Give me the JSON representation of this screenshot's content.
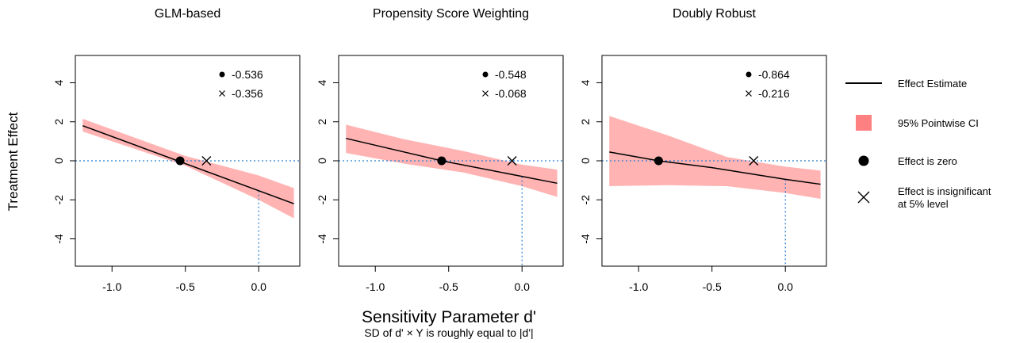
{
  "figure": {
    "ylabel": "Treatment Effect",
    "xlabel": "Sensitivity Parameter d'",
    "xsublabel": "SD of d' × Y is roughly equal to |d'|"
  },
  "legend": {
    "placement": "right",
    "items": [
      {
        "label": "Effect Estimate",
        "symbol": "line"
      },
      {
        "label": "95% Pointwise CI",
        "symbol": "band"
      },
      {
        "label": "Effect is zero",
        "symbol": "dot"
      },
      {
        "label_line1": "Effect is insignificant",
        "label_line2": "at 5% level",
        "symbol": "cross"
      }
    ]
  },
  "colors": {
    "estimate_line": "#000000",
    "ci_band": "#ffb3b3",
    "ci_legend": "#ff8080",
    "reference_lines": "#2a7fcf"
  },
  "chart_data": [
    {
      "type": "line",
      "title": "GLM-based",
      "xlim": [
        -1.25,
        0.28
      ],
      "ylim": [
        -5.4,
        5.4
      ],
      "xticks": [
        -1.0,
        -0.5,
        0.0
      ],
      "xtick_labels": [
        "-1.0",
        "-0.5",
        "0.0"
      ],
      "yticks": [
        -4,
        -2,
        0,
        2,
        4
      ],
      "ytick_labels": [
        "-4",
        "-2",
        "0",
        "2",
        "4"
      ],
      "reference": {
        "y": 0,
        "x": 0
      },
      "estimate": {
        "x": [
          -1.2,
          0.24
        ],
        "y": [
          1.8,
          -2.2
        ]
      },
      "ci_band": {
        "x": [
          -1.2,
          -0.5,
          0.0,
          0.24
        ],
        "lower": [
          1.5,
          -0.25,
          -2.0,
          -2.95
        ],
        "upper": [
          2.15,
          0.25,
          -0.75,
          -1.4
        ]
      },
      "zero_point": {
        "x": -0.536,
        "y": 0,
        "label": "-0.536"
      },
      "insignificant_point": {
        "x": -0.356,
        "y": 0,
        "label": "-0.356"
      }
    },
    {
      "type": "line",
      "title": "Propensity Score Weighting",
      "xlim": [
        -1.25,
        0.28
      ],
      "ylim": [
        -5.4,
        5.4
      ],
      "xticks": [
        -1.0,
        -0.5,
        0.0
      ],
      "xtick_labels": [
        "-1.0",
        "-0.5",
        "0.0"
      ],
      "yticks": [
        -4,
        -2,
        0,
        2,
        4
      ],
      "ytick_labels": [
        "-4",
        "-2",
        "0",
        "2",
        "4"
      ],
      "reference": {
        "y": 0,
        "x": 0
      },
      "estimate": {
        "x": [
          -1.2,
          -0.548,
          0.24
        ],
        "y": [
          1.15,
          0.0,
          -1.15
        ]
      },
      "ci_band": {
        "x": [
          -1.2,
          -0.8,
          -0.4,
          0.0,
          0.24
        ],
        "lower": [
          0.4,
          -0.15,
          -0.6,
          -1.3,
          -1.85
        ],
        "upper": [
          1.85,
          1.1,
          0.5,
          -0.2,
          -0.45
        ]
      },
      "zero_point": {
        "x": -0.548,
        "y": 0,
        "label": "-0.548"
      },
      "insignificant_point": {
        "x": -0.068,
        "y": 0,
        "label": "-0.068"
      }
    },
    {
      "type": "line",
      "title": "Doubly Robust",
      "xlim": [
        -1.25,
        0.28
      ],
      "ylim": [
        -5.4,
        5.4
      ],
      "xticks": [
        -1.0,
        -0.5,
        0.0
      ],
      "xtick_labels": [
        "-1.0",
        "-0.5",
        "0.0"
      ],
      "yticks": [
        -4,
        -2,
        0,
        2,
        4
      ],
      "ytick_labels": [
        "-4",
        "-2",
        "0",
        "2",
        "4"
      ],
      "reference": {
        "y": 0,
        "x": 0
      },
      "estimate": {
        "x": [
          -1.2,
          -0.864,
          -0.5,
          0.0,
          0.24
        ],
        "y": [
          0.45,
          0.0,
          -0.35,
          -0.95,
          -1.2
        ]
      },
      "ci_band": {
        "x": [
          -1.2,
          -0.8,
          -0.4,
          0.0,
          0.24
        ],
        "lower": [
          -1.3,
          -1.25,
          -1.3,
          -1.65,
          -1.95
        ],
        "upper": [
          2.3,
          1.3,
          0.2,
          -0.3,
          -0.5
        ]
      },
      "zero_point": {
        "x": -0.864,
        "y": 0,
        "label": "-0.864"
      },
      "insignificant_point": {
        "x": -0.216,
        "y": 0,
        "label": "-0.216"
      }
    }
  ]
}
